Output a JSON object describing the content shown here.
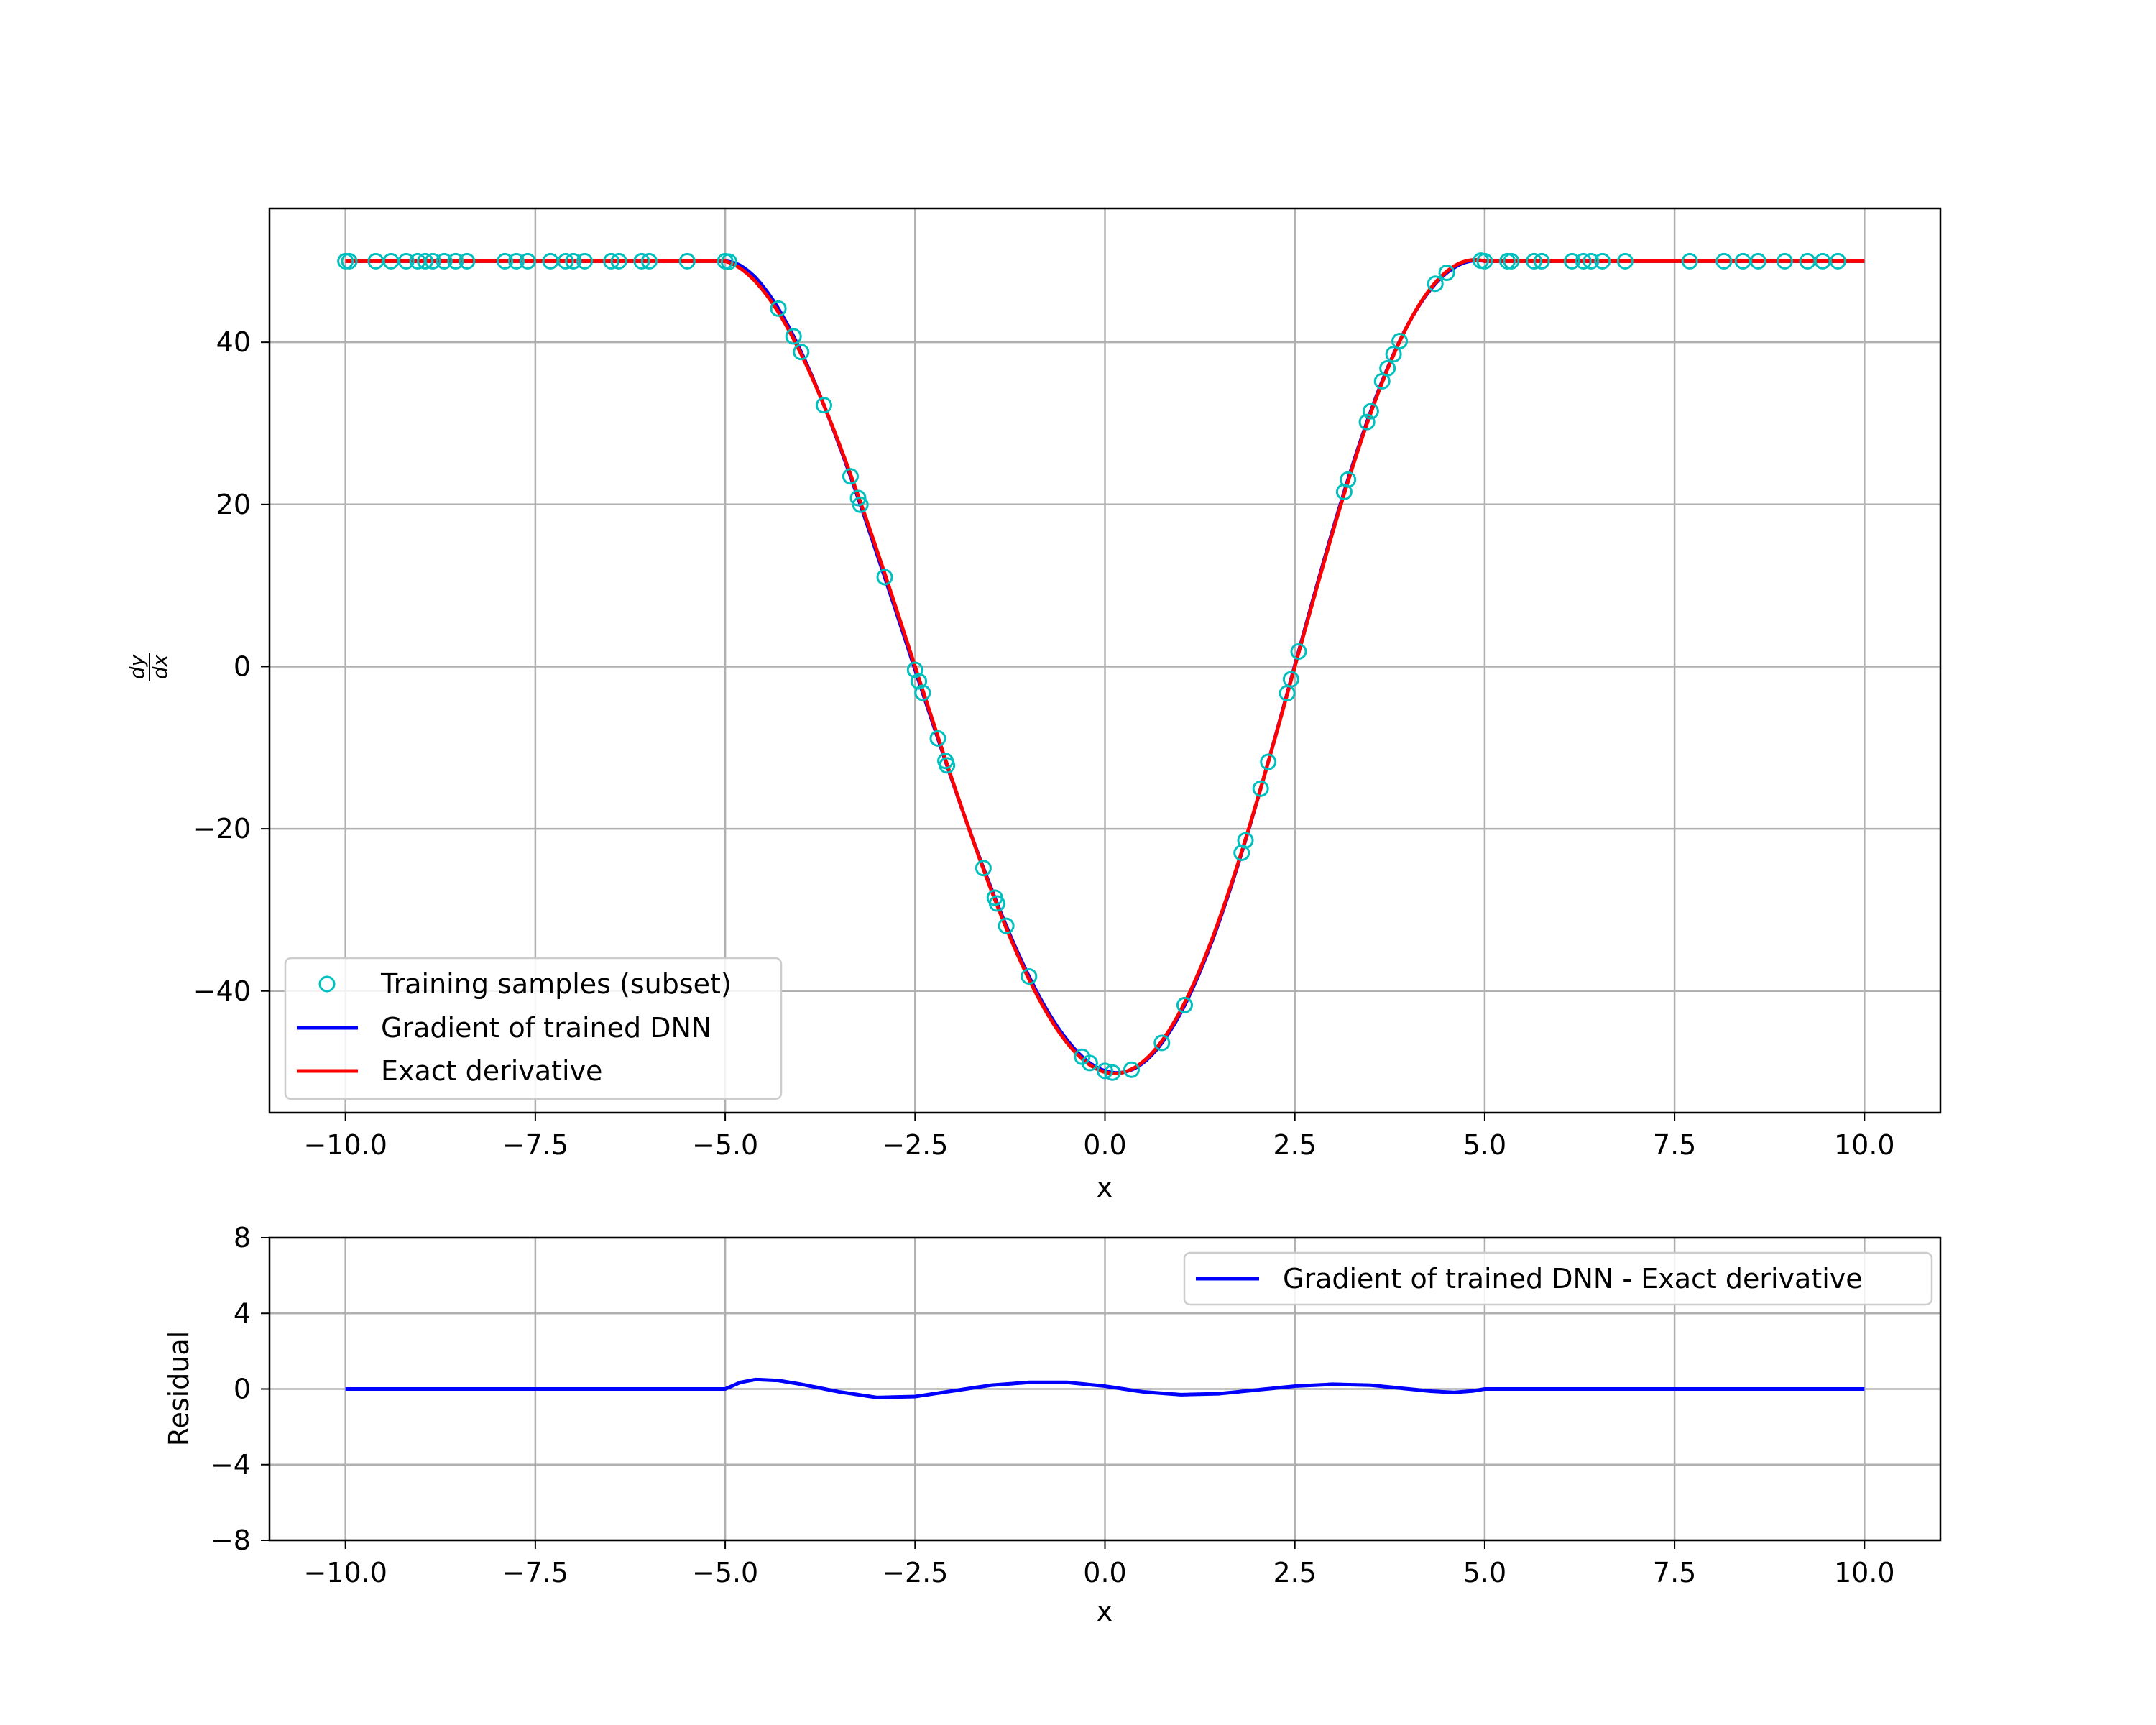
{
  "chart_data": [
    {
      "type": "line",
      "xlabel": "x",
      "ylabel_numerator": "dy",
      "ylabel_denominator": "dx",
      "xlim": [
        -11,
        11
      ],
      "ylim": [
        -55,
        56.5
      ],
      "xticks": [
        -10.0,
        -7.5,
        -5.0,
        -2.5,
        0.0,
        2.5,
        5.0,
        7.5,
        10.0
      ],
      "xtick_labels": [
        "−10.0",
        "−7.5",
        "−5.0",
        "−2.5",
        "0.0",
        "2.5",
        "5.0",
        "7.5",
        "10.0"
      ],
      "yticks": [
        -40,
        -20,
        0,
        20,
        40
      ],
      "ytick_labels": [
        "−40",
        "−20",
        "0",
        "20",
        "40"
      ],
      "grid": true,
      "legend_position": "lower-left",
      "legend": [
        {
          "label": "Training samples (subset)",
          "style": "marker",
          "color": "#00bfbf"
        },
        {
          "label": "Gradient of trained DNN",
          "style": "line",
          "color": "#0000ff"
        },
        {
          "label": "Exact derivative",
          "style": "line",
          "color": "#ff0000"
        }
      ],
      "series": [
        {
          "name": "Training samples (subset)",
          "kind": "scatter",
          "color": "#00bfbf",
          "x": [
            -10.0,
            -9.95,
            -9.6,
            -9.4,
            -9.2,
            -9.05,
            -8.95,
            -8.85,
            -8.7,
            -8.55,
            -8.4,
            -7.9,
            -7.75,
            -7.6,
            -7.3,
            -7.1,
            -7.0,
            -6.85,
            -6.5,
            -6.4,
            -6.1,
            -6.0,
            -5.5,
            -5.0,
            -4.95,
            -4.3,
            -4.1,
            -4.0,
            -3.7,
            -3.35,
            -3.25,
            -3.22,
            -2.9,
            -2.5,
            -2.45,
            -2.4,
            -2.2,
            -2.1,
            -2.08,
            -1.6,
            -1.45,
            -1.42,
            -1.3,
            -1.0,
            -0.3,
            -0.2,
            0.0,
            0.1,
            0.35,
            0.75,
            1.05,
            1.8,
            1.85,
            2.05,
            2.15,
            2.4,
            2.45,
            2.55,
            3.15,
            3.2,
            3.45,
            3.5,
            3.65,
            3.72,
            3.8,
            3.88,
            4.35,
            4.5,
            4.95,
            5.0,
            5.3,
            5.35,
            5.65,
            5.75,
            6.15,
            6.3,
            6.4,
            6.55,
            6.85,
            7.7,
            8.15,
            8.4,
            8.6,
            8.95,
            9.25,
            9.45,
            9.65
          ]
        },
        {
          "name": "Gradient of trained DNN",
          "kind": "line",
          "color": "#0000ff",
          "function": "exact_derivative_plus_residual"
        },
        {
          "name": "Exact derivative",
          "kind": "line",
          "color": "#ff0000",
          "function": "exact_derivative"
        }
      ]
    },
    {
      "type": "line",
      "xlabel": "x",
      "ylabel": "Residual",
      "xlim": [
        -11,
        11
      ],
      "ylim": [
        -8,
        8
      ],
      "xticks": [
        -10.0,
        -7.5,
        -5.0,
        -2.5,
        0.0,
        2.5,
        5.0,
        7.5,
        10.0
      ],
      "xtick_labels": [
        "−10.0",
        "−7.5",
        "−5.0",
        "−2.5",
        "0.0",
        "2.5",
        "5.0",
        "7.5",
        "10.0"
      ],
      "yticks": [
        -8,
        -4,
        0,
        4,
        8
      ],
      "ytick_labels": [
        "−8",
        "−4",
        "0",
        "4",
        "8"
      ],
      "grid": true,
      "legend_position": "top-right",
      "legend": [
        {
          "label": "Gradient of trained DNN - Exact derivative",
          "style": "line",
          "color": "#0000ff"
        }
      ],
      "series": [
        {
          "name": "Gradient of trained DNN - Exact derivative",
          "kind": "line",
          "color": "#0000ff",
          "x": [
            -10.0,
            -7.5,
            -5.0,
            -4.8,
            -4.6,
            -4.3,
            -4.0,
            -3.5,
            -3.0,
            -2.5,
            -2.0,
            -1.5,
            -1.0,
            -0.5,
            0.0,
            0.5,
            1.0,
            1.5,
            2.0,
            2.5,
            3.0,
            3.5,
            4.0,
            4.3,
            4.6,
            4.85,
            5.0,
            7.5,
            10.0
          ],
          "y": [
            0.0,
            0.0,
            0.0,
            0.35,
            0.5,
            0.45,
            0.25,
            -0.15,
            -0.45,
            -0.4,
            -0.1,
            0.2,
            0.35,
            0.35,
            0.15,
            -0.15,
            -0.3,
            -0.25,
            -0.05,
            0.15,
            0.25,
            0.2,
            0.0,
            -0.12,
            -0.18,
            -0.1,
            0.0,
            0.0,
            0.0
          ]
        }
      ]
    }
  ]
}
